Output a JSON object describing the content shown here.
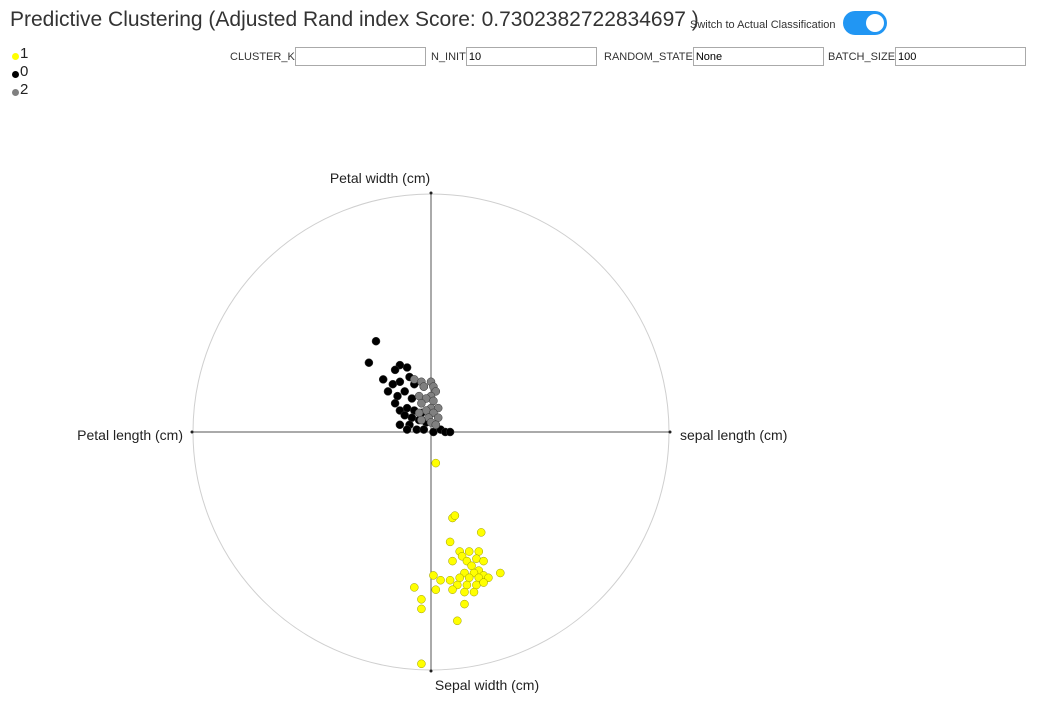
{
  "header": {
    "title": "Predictive Clustering (Adjusted Rand index Score: 0.7302382722834697 )",
    "toggle_label": "Switch to Actual Classification",
    "toggle_on": true
  },
  "params": [
    {
      "label": "CLUSTER_K",
      "value": ""
    },
    {
      "label": "N_INIT",
      "value": "10"
    },
    {
      "label": "RANDOM_STATE",
      "value": "None"
    },
    {
      "label": "BATCH_SIZE",
      "value": "100"
    }
  ],
  "legend": [
    {
      "label": "1",
      "color": "#ffff00"
    },
    {
      "label": "0",
      "color": "#000000"
    },
    {
      "label": "2",
      "color": "#808080"
    }
  ],
  "chart_data": {
    "type": "scatter",
    "dimensions": [
      "sepal length (cm)",
      "Petal width (cm)",
      "Petal length (cm)",
      "Sepal width (cm)"
    ],
    "xlim": [
      -1,
      1
    ],
    "ylim": [
      -1,
      1
    ],
    "grid": false,
    "legend_position": "top-left",
    "series": [
      {
        "name": "1",
        "color": "#ffff00",
        "points": [
          [
            0.02,
            -0.13
          ],
          [
            0.09,
            -0.36
          ],
          [
            0.1,
            -0.35
          ],
          [
            0.21,
            -0.42
          ],
          [
            0.08,
            -0.46
          ],
          [
            0.12,
            -0.5
          ],
          [
            0.16,
            -0.5
          ],
          [
            0.2,
            -0.5
          ],
          [
            0.13,
            -0.52
          ],
          [
            0.19,
            -0.53
          ],
          [
            0.15,
            -0.54
          ],
          [
            0.22,
            -0.54
          ],
          [
            0.09,
            -0.54
          ],
          [
            0.17,
            -0.56
          ],
          [
            0.2,
            -0.58
          ],
          [
            0.14,
            -0.59
          ],
          [
            0.18,
            -0.59
          ],
          [
            0.22,
            -0.6
          ],
          [
            0.29,
            -0.59
          ],
          [
            0.12,
            -0.61
          ],
          [
            0.16,
            -0.61
          ],
          [
            0.2,
            -0.61
          ],
          [
            0.24,
            -0.61
          ],
          [
            0.01,
            -0.6
          ],
          [
            0.04,
            -0.62
          ],
          [
            0.08,
            -0.62
          ],
          [
            0.11,
            -0.64
          ],
          [
            0.15,
            -0.64
          ],
          [
            0.19,
            -0.64
          ],
          [
            0.22,
            -0.63
          ],
          [
            -0.07,
            -0.65
          ],
          [
            0.02,
            -0.66
          ],
          [
            0.09,
            -0.66
          ],
          [
            0.14,
            -0.67
          ],
          [
            0.18,
            -0.67
          ],
          [
            -0.04,
            -0.7
          ],
          [
            0.14,
            -0.72
          ],
          [
            -0.04,
            -0.74
          ],
          [
            0.11,
            -0.79
          ],
          [
            -0.04,
            -0.97
          ]
        ]
      },
      {
        "name": "0",
        "color": "#000000",
        "points": [
          [
            -0.23,
            0.38
          ],
          [
            -0.26,
            0.29
          ],
          [
            -0.13,
            0.28
          ],
          [
            -0.1,
            0.27
          ],
          [
            -0.15,
            0.26
          ],
          [
            -0.09,
            0.23
          ],
          [
            -0.2,
            0.22
          ],
          [
            -0.13,
            0.21
          ],
          [
            -0.16,
            0.2
          ],
          [
            -0.07,
            0.2
          ],
          [
            -0.03,
            0.19
          ],
          [
            -0.18,
            0.17
          ],
          [
            -0.11,
            0.17
          ],
          [
            -0.14,
            0.15
          ],
          [
            -0.08,
            0.14
          ],
          [
            -0.15,
            0.12
          ],
          [
            -0.1,
            0.1
          ],
          [
            -0.13,
            0.09
          ],
          [
            -0.07,
            0.09
          ],
          [
            -0.04,
            0.08
          ],
          [
            -0.11,
            0.07
          ],
          [
            -0.08,
            0.06
          ],
          [
            -0.05,
            0.05
          ],
          [
            -0.02,
            0.04
          ],
          [
            0.02,
            0.03
          ],
          [
            -0.13,
            0.03
          ],
          [
            -0.09,
            0.03
          ],
          [
            -0.1,
            0.01
          ],
          [
            -0.06,
            0.01
          ],
          [
            -0.03,
            0.01
          ],
          [
            0.01,
            0.0
          ],
          [
            0.04,
            0.01
          ],
          [
            0.06,
            0.0
          ],
          [
            0.08,
            -0.0
          ]
        ]
      },
      {
        "name": "2",
        "color": "#808080",
        "points": [
          [
            -0.07,
            0.22
          ],
          [
            -0.04,
            0.21
          ],
          [
            0.0,
            0.21
          ],
          [
            -0.03,
            0.19
          ],
          [
            0.01,
            0.19
          ],
          [
            0.02,
            0.17
          ],
          [
            0.0,
            0.15
          ],
          [
            -0.05,
            0.15
          ],
          [
            -0.02,
            0.14
          ],
          [
            0.01,
            0.13
          ],
          [
            -0.04,
            0.12
          ],
          [
            0.0,
            0.1
          ],
          [
            0.03,
            0.1
          ],
          [
            -0.02,
            0.09
          ],
          [
            -0.05,
            0.08
          ],
          [
            0.01,
            0.08
          ],
          [
            -0.01,
            0.06
          ],
          [
            0.03,
            0.06
          ],
          [
            -0.04,
            0.05
          ],
          [
            0.0,
            0.04
          ],
          [
            0.02,
            0.03
          ]
        ]
      }
    ]
  }
}
